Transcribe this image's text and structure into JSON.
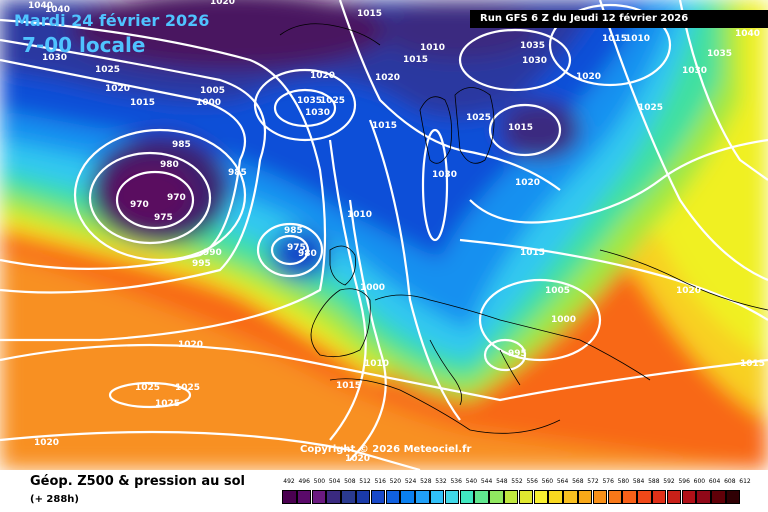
{
  "header": {
    "date": "Mardi 24 février 2026",
    "hour": "7-00 locale",
    "run": "Run GFS 6 Z du Jeudi 12 février 2026"
  },
  "footer": {
    "title": "Géop. Z500 & pression au sol",
    "subtitle": "(+ 288h)",
    "copyright": "Copyright © 2026 Meteociel.fr"
  },
  "legend": {
    "labels": [
      "492",
      "496",
      "500",
      "504",
      "508",
      "512",
      "516",
      "520",
      "524",
      "528",
      "532",
      "536",
      "540",
      "544",
      "548",
      "552",
      "556",
      "560",
      "564",
      "568",
      "572",
      "576",
      "580",
      "584",
      "588",
      "592",
      "596",
      "600",
      "604",
      "608",
      "612"
    ],
    "colors": [
      "#4a0050",
      "#5a0a6a",
      "#6a1a80",
      "#3a2a80",
      "#2a3a90",
      "#1a3aa8",
      "#1848c8",
      "#1060e0",
      "#0a80f0",
      "#20a0f8",
      "#30c0f8",
      "#40d8e8",
      "#40e8c0",
      "#60e890",
      "#90e860",
      "#c0e840",
      "#e0e830",
      "#f8f030",
      "#f8d820",
      "#f8c020",
      "#f8a818",
      "#f89018",
      "#f87818",
      "#f86018",
      "#f04818",
      "#e03018",
      "#c82018",
      "#b01018",
      "#900818",
      "#600008",
      "#300004"
    ]
  },
  "map": {
    "isobars": [
      {
        "label": "1040",
        "x": "28",
        "y": "8"
      },
      {
        "label": "1040",
        "x": "45",
        "y": "12"
      },
      {
        "label": "1020",
        "x": "210",
        "y": "4"
      },
      {
        "label": "1015",
        "x": "357",
        "y": "16"
      },
      {
        "label": "1030",
        "x": "42",
        "y": "60"
      },
      {
        "label": "1025",
        "x": "95",
        "y": "72"
      },
      {
        "label": "1020",
        "x": "105",
        "y": "91"
      },
      {
        "label": "1015",
        "x": "130",
        "y": "105"
      },
      {
        "label": "1005",
        "x": "200",
        "y": "93"
      },
      {
        "label": "1000",
        "x": "196",
        "y": "105"
      },
      {
        "label": "1020",
        "x": "310",
        "y": "78"
      },
      {
        "label": "1035",
        "x": "297",
        "y": "103"
      },
      {
        "label": "1025",
        "x": "320",
        "y": "103"
      },
      {
        "label": "1030",
        "x": "305",
        "y": "115"
      },
      {
        "label": "1020",
        "x": "375",
        "y": "80"
      },
      {
        "label": "1010",
        "x": "420",
        "y": "50"
      },
      {
        "label": "1015",
        "x": "403",
        "y": "62"
      },
      {
        "label": "1015",
        "x": "372",
        "y": "128"
      },
      {
        "label": "1035",
        "x": "520",
        "y": "48"
      },
      {
        "label": "1030",
        "x": "522",
        "y": "63"
      },
      {
        "label": "1020",
        "x": "576",
        "y": "79"
      },
      {
        "label": "1015",
        "x": "602",
        "y": "41"
      },
      {
        "label": "1010",
        "x": "625",
        "y": "41"
      },
      {
        "label": "1040",
        "x": "735",
        "y": "36"
      },
      {
        "label": "1035",
        "x": "707",
        "y": "56"
      },
      {
        "label": "1030",
        "x": "682",
        "y": "73"
      },
      {
        "label": "1025",
        "x": "638",
        "y": "110"
      },
      {
        "label": "1015",
        "x": "508",
        "y": "130"
      },
      {
        "label": "1025",
        "x": "466",
        "y": "120"
      },
      {
        "label": "985",
        "x": "172",
        "y": "147"
      },
      {
        "label": "980",
        "x": "160",
        "y": "167"
      },
      {
        "label": "985",
        "x": "228",
        "y": "175"
      },
      {
        "label": "970",
        "x": "130",
        "y": "207"
      },
      {
        "label": "970",
        "x": "167",
        "y": "200"
      },
      {
        "label": "975",
        "x": "154",
        "y": "220"
      },
      {
        "label": "1030",
        "x": "432",
        "y": "177"
      },
      {
        "label": "1020",
        "x": "515",
        "y": "185"
      },
      {
        "label": "1010",
        "x": "347",
        "y": "217"
      },
      {
        "label": "985",
        "x": "284",
        "y": "233"
      },
      {
        "label": "975",
        "x": "287",
        "y": "250"
      },
      {
        "label": "980",
        "x": "298",
        "y": "256"
      },
      {
        "label": "990",
        "x": "203",
        "y": "255"
      },
      {
        "label": "995",
        "x": "192",
        "y": "266"
      },
      {
        "label": "1015",
        "x": "520",
        "y": "255"
      },
      {
        "label": "1005",
        "x": "545",
        "y": "293"
      },
      {
        "label": "1000",
        "x": "360",
        "y": "290"
      },
      {
        "label": "1000",
        "x": "551",
        "y": "322"
      },
      {
        "label": "1020",
        "x": "676",
        "y": "293"
      },
      {
        "label": "995",
        "x": "508",
        "y": "356"
      },
      {
        "label": "1020",
        "x": "178",
        "y": "347"
      },
      {
        "label": "1010",
        "x": "364",
        "y": "366"
      },
      {
        "label": "1015",
        "x": "740",
        "y": "366"
      },
      {
        "label": "1015",
        "x": "336",
        "y": "388"
      },
      {
        "label": "1025",
        "x": "135",
        "y": "390"
      },
      {
        "label": "1025",
        "x": "175",
        "y": "390"
      },
      {
        "label": "1025",
        "x": "155",
        "y": "406"
      },
      {
        "label": "1020",
        "x": "34",
        "y": "445"
      },
      {
        "label": "1020",
        "x": "345",
        "y": "461"
      }
    ]
  }
}
